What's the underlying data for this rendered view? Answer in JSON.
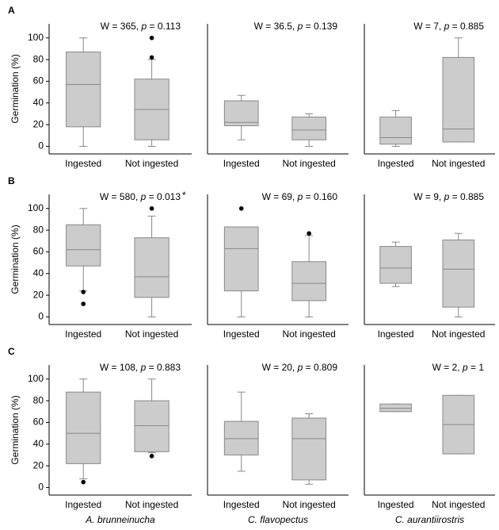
{
  "row_labels": [
    "A",
    "B",
    "C"
  ],
  "column_labels": [
    "A. brunneinucha",
    "C. flavopectus",
    "C. aurantiirostris"
  ],
  "chart_data": [
    {
      "type": "box",
      "stat": [
        "W = 365, ",
        "p",
        " = 0.113"
      ],
      "ylabel": "Germination (%)",
      "categories": [
        "Ingested",
        "Not ingested"
      ],
      "color": "#cccccc",
      "boxes": [
        {
          "min": 0,
          "q1": 18,
          "median": 57,
          "q3": 87,
          "max": 100,
          "outliers": []
        },
        {
          "min": 0,
          "q1": 6,
          "median": 34,
          "q3": 62,
          "max": 80,
          "outliers": [
            100,
            82
          ]
        }
      ],
      "ylim": [
        -7,
        113
      ],
      "yticks": [
        0,
        20,
        40,
        60,
        80,
        100
      ]
    },
    {
      "type": "box",
      "stat": [
        "W = 36.5, ",
        "p",
        " = 0.139"
      ],
      "categories": [
        "Ingested",
        "Not ingested"
      ],
      "color": "#cccccc",
      "boxes": [
        {
          "min": 6,
          "q1": 19,
          "median": 22,
          "q3": 42,
          "max": 47,
          "outliers": []
        },
        {
          "min": 0,
          "q1": 6,
          "median": 15,
          "q3": 27,
          "max": 30,
          "outliers": []
        }
      ],
      "ylim": [
        -7,
        113
      ]
    },
    {
      "type": "box",
      "stat": [
        "W = 7, ",
        "p",
        " = 0.885"
      ],
      "categories": [
        "Ingested",
        "Not ingested"
      ],
      "color": "#cccccc",
      "boxes": [
        {
          "min": 0,
          "q1": 2,
          "median": 8,
          "q3": 27,
          "max": 33,
          "outliers": []
        },
        {
          "min": 4,
          "q1": 4,
          "median": 16,
          "q3": 82,
          "max": 100,
          "outliers": []
        }
      ],
      "ylim": [
        -7,
        113
      ]
    },
    {
      "type": "box",
      "stat": [
        "W = 580, ",
        "p",
        " = 0.013"
      ],
      "significance": "*",
      "ylabel": "Germination (%)",
      "categories": [
        "Ingested",
        "Not ingested"
      ],
      "color": "#cccccc",
      "boxes": [
        {
          "min": 24,
          "q1": 47,
          "median": 62,
          "q3": 85,
          "max": 100,
          "outliers": [
            23,
            12
          ]
        },
        {
          "min": 0,
          "q1": 18,
          "median": 37,
          "q3": 73,
          "max": 93,
          "outliers": [
            100
          ]
        }
      ],
      "ylim": [
        -7,
        113
      ],
      "yticks": [
        0,
        20,
        40,
        60,
        80,
        100
      ]
    },
    {
      "type": "box",
      "stat": [
        "W = 69, ",
        "p",
        " = 0.160"
      ],
      "categories": [
        "Ingested",
        "Not ingested"
      ],
      "color": "#cccccc",
      "boxes": [
        {
          "min": 0,
          "q1": 24,
          "median": 63,
          "q3": 83,
          "max": 83,
          "outliers": [
            100
          ]
        },
        {
          "min": 0,
          "q1": 15,
          "median": 31,
          "q3": 51,
          "max": 75,
          "outliers": [
            77
          ]
        }
      ],
      "ylim": [
        -7,
        113
      ]
    },
    {
      "type": "box",
      "stat": [
        "W = 9, ",
        "p",
        " = 0.885"
      ],
      "categories": [
        "Ingested",
        "Not ingested"
      ],
      "color": "#cccccc",
      "boxes": [
        {
          "min": 28,
          "q1": 31,
          "median": 45,
          "q3": 65,
          "max": 69,
          "outliers": []
        },
        {
          "min": 0,
          "q1": 9,
          "median": 44,
          "q3": 71,
          "max": 77,
          "outliers": []
        }
      ],
      "ylim": [
        -7,
        113
      ]
    },
    {
      "type": "box",
      "stat": [
        "W = 108, ",
        "p",
        " = 0.883"
      ],
      "ylabel": "Germination (%)",
      "categories": [
        "Ingested",
        "Not ingested"
      ],
      "color": "#cccccc",
      "boxes": [
        {
          "min": 8,
          "q1": 22,
          "median": 50,
          "q3": 88,
          "max": 100,
          "outliers": [
            5
          ]
        },
        {
          "min": 32,
          "q1": 33,
          "median": 57,
          "q3": 80,
          "max": 100,
          "outliers": [
            29
          ]
        }
      ],
      "ylim": [
        -7,
        113
      ],
      "yticks": [
        0,
        20,
        40,
        60,
        80,
        100
      ]
    },
    {
      "type": "box",
      "stat": [
        "W = 20, ",
        "p",
        " = 0.809"
      ],
      "categories": [
        "Ingested",
        "Not ingested"
      ],
      "color": "#cccccc",
      "boxes": [
        {
          "min": 15,
          "q1": 30,
          "median": 45,
          "q3": 61,
          "max": 88,
          "outliers": []
        },
        {
          "min": 3,
          "q1": 7,
          "median": 45,
          "q3": 64,
          "max": 68,
          "outliers": []
        }
      ],
      "ylim": [
        -7,
        113
      ]
    },
    {
      "type": "box",
      "stat": [
        "W = 2, ",
        "p",
        " = 1"
      ],
      "categories": [
        "Ingested",
        "Not ingested"
      ],
      "color": "#cccccc",
      "boxes": [
        {
          "min": 70,
          "q1": 70,
          "median": 73,
          "q3": 77,
          "max": 77,
          "outliers": []
        },
        {
          "min": 31,
          "q1": 31,
          "median": 58,
          "q3": 85,
          "max": 85,
          "outliers": []
        }
      ],
      "ylim": [
        -7,
        113
      ]
    }
  ]
}
